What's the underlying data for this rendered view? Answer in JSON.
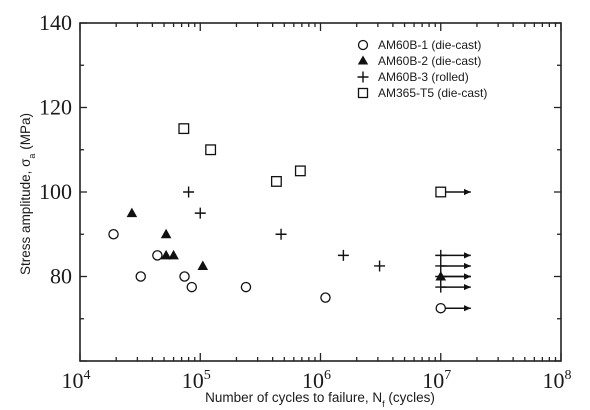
{
  "chart_data": {
    "type": "scatter",
    "title": "",
    "xlabel": "Number of cycles to failure, N",
    "xlabel_sub": "f",
    "xlabel_suffix": " (cycles)",
    "ylabel": "Stress amplitude, σ",
    "ylabel_sub": "a",
    "ylabel_suffix": " (MPa)",
    "xscale": "log",
    "xlim": [
      10000,
      100000000
    ],
    "ylim": [
      60,
      140
    ],
    "grid": false,
    "legend_position": "top-right",
    "x_ticks": [
      {
        "value": 10000,
        "base": "10",
        "exp": "4"
      },
      {
        "value": 100000,
        "base": "10",
        "exp": "5"
      },
      {
        "value": 1000000,
        "base": "10",
        "exp": "6"
      },
      {
        "value": 10000000,
        "base": "10",
        "exp": "7"
      },
      {
        "value": 100000000,
        "base": "10",
        "exp": "8"
      }
    ],
    "y_ticks": [
      {
        "value": 80,
        "label": "80"
      },
      {
        "value": 100,
        "label": "100"
      },
      {
        "value": 120,
        "label": "120"
      },
      {
        "value": 140,
        "label": "140"
      }
    ],
    "series": [
      {
        "name": "AM60B-1 (die-cast)",
        "marker": "open-circle",
        "points": [
          {
            "x": 19000,
            "y": 90
          },
          {
            "x": 32000,
            "y": 80
          },
          {
            "x": 44000,
            "y": 85
          },
          {
            "x": 74000,
            "y": 80
          },
          {
            "x": 85000,
            "y": 77.5
          },
          {
            "x": 240000,
            "y": 77.5
          },
          {
            "x": 1100000,
            "y": 75
          },
          {
            "x": 10000000,
            "y": 72.5,
            "runout": true
          }
        ]
      },
      {
        "name": "AM60B-2 (die-cast)",
        "marker": "filled-triangle",
        "points": [
          {
            "x": 27000,
            "y": 95
          },
          {
            "x": 52000,
            "y": 90
          },
          {
            "x": 52000,
            "y": 85
          },
          {
            "x": 60000,
            "y": 85
          },
          {
            "x": 105000,
            "y": 82.5
          },
          {
            "x": 10000000,
            "y": 80,
            "runout": true
          }
        ]
      },
      {
        "name": "AM60B-3 (rolled)",
        "marker": "plus",
        "points": [
          {
            "x": 80000,
            "y": 100
          },
          {
            "x": 100000,
            "y": 95
          },
          {
            "x": 470000,
            "y": 90
          },
          {
            "x": 1550000,
            "y": 85
          },
          {
            "x": 3100000,
            "y": 82.5
          },
          {
            "x": 10000000,
            "y": 85,
            "runout": true
          },
          {
            "x": 10000000,
            "y": 82.5,
            "runout": true
          },
          {
            "x": 10000000,
            "y": 80,
            "runout": true
          },
          {
            "x": 10000000,
            "y": 77.5,
            "runout": true
          }
        ]
      },
      {
        "name": "AM365-T5 (die-cast)",
        "marker": "open-square",
        "points": [
          {
            "x": 73000,
            "y": 115
          },
          {
            "x": 122000,
            "y": 110
          },
          {
            "x": 430000,
            "y": 102.5
          },
          {
            "x": 680000,
            "y": 105
          },
          {
            "x": 10000000,
            "y": 100,
            "runout": true
          }
        ]
      }
    ],
    "runout_arrow_decades": 0.25
  }
}
